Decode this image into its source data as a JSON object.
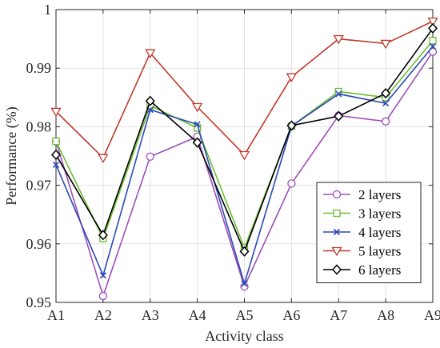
{
  "chart_data": {
    "type": "line",
    "xlabel": "Activity class",
    "ylabel": "Performance (%)",
    "categories": [
      "A1",
      "A2",
      "A3",
      "A4",
      "A5",
      "A6",
      "A7",
      "A8",
      "A9"
    ],
    "ylim": [
      0.95,
      1
    ],
    "yticks": [
      0.95,
      0.96,
      0.97,
      0.98,
      0.99,
      1
    ],
    "ytick_labels": [
      "0.95",
      "0.96",
      "0.97",
      "0.98",
      "0.99",
      "1"
    ],
    "grid": true,
    "legend_position": "bottom-right",
    "series": [
      {
        "name": "2 layers",
        "color": "#9e4fb8",
        "marker": "circle",
        "values": [
          0.9775,
          0.9511,
          0.9749,
          0.9783,
          0.9527,
          0.9703,
          0.9819,
          0.9809,
          0.9928
        ]
      },
      {
        "name": "3 layers",
        "color": "#6ebc32",
        "marker": "square",
        "values": [
          0.9775,
          0.9609,
          0.9836,
          0.9798,
          0.9593,
          0.9801,
          0.986,
          0.985,
          0.9947
        ]
      },
      {
        "name": "4 layers",
        "color": "#2b48b5",
        "marker": "x",
        "values": [
          0.9735,
          0.9546,
          0.9829,
          0.9804,
          0.9532,
          0.9801,
          0.9856,
          0.984,
          0.9937
        ]
      },
      {
        "name": "5 layers",
        "color": "#c0392b",
        "marker": "triangle-down",
        "values": [
          0.9826,
          0.9747,
          0.9926,
          0.9834,
          0.9752,
          0.9885,
          0.995,
          0.9942,
          0.998
        ]
      },
      {
        "name": "6 layers",
        "color": "#000000",
        "marker": "diamond",
        "values": [
          0.9752,
          0.9615,
          0.9844,
          0.9773,
          0.9587,
          0.9802,
          0.9818,
          0.9857,
          0.9968
        ]
      }
    ]
  }
}
